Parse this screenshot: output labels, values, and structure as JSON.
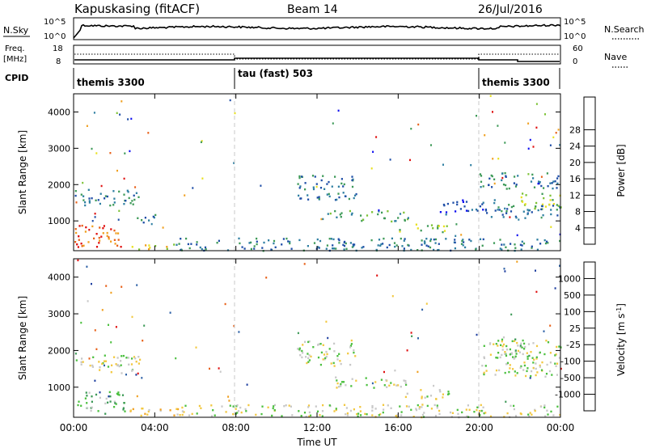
{
  "header": {
    "station": "Kapuskasing (fitACF)",
    "beam": "Beam 14",
    "date": "26/Jul/2016"
  },
  "labels": {
    "nsky": "N.Sky",
    "nsearch": "N.Search",
    "freq_line1": "Freq.",
    "freq_line2": "[MHz]",
    "nave": "Nave",
    "cpid": "CPID",
    "nsky_tick_hi": "10^5",
    "nsky_tick_lo": "10^0",
    "nsearch_tick_hi": "10^5",
    "nsearch_tick_lo": "10^0",
    "freq_tick_hi": "18",
    "freq_tick_lo": "8",
    "nave_tick_hi": "60",
    "nave_tick_lo": "0"
  },
  "cpid": [
    {
      "label": "themis 3300",
      "start_hour": 0
    },
    {
      "label": "tau (fast) 503",
      "start_hour": 8
    },
    {
      "label": "themis 3300",
      "start_hour": 20
    }
  ],
  "colors": {
    "power": [
      "#1010f0",
      "#1f4ea7",
      "#2f7fa2",
      "#3e9a58",
      "#7cc235",
      "#e8e020",
      "#f0a020",
      "#e86018",
      "#e01010"
    ],
    "velocity": [
      "#e01010",
      "#e86018",
      "#f0a020",
      "#f2c840",
      "#c8c8c8",
      "#4cc040",
      "#3e9a58",
      "#2f62a7",
      "#1f3fa0"
    ],
    "frame": "#000000",
    "guide": "#c8c8c8"
  },
  "chart_data": [
    {
      "type": "heatmap",
      "panel": "power",
      "xlabel": "",
      "ylabel": "Slant Range [km]",
      "xlim": [
        0,
        24
      ],
      "ylim": [
        180,
        4500
      ],
      "y_ticks": [
        "1000",
        "2000",
        "3000",
        "4000"
      ],
      "colorbar_label": "Power [dB]",
      "colorbar_ticks": [
        "4",
        "8",
        "12",
        "16",
        "20",
        "24",
        "28"
      ],
      "regions": [
        {
          "t0": 0.0,
          "t1": 2.5,
          "r0": 280,
          "r1": 900,
          "level": 7
        },
        {
          "t0": 2.5,
          "t1": 5.0,
          "r0": 230,
          "r1": 380,
          "level": 5
        },
        {
          "t0": 0.0,
          "t1": 3.3,
          "r0": 1450,
          "r1": 1900,
          "level": 2
        },
        {
          "t0": 3.0,
          "t1": 4.0,
          "r0": 900,
          "r1": 1200,
          "level": 2
        },
        {
          "t0": 5.0,
          "t1": 24.0,
          "r0": 200,
          "r1": 550,
          "level": 2
        },
        {
          "t0": 11.0,
          "t1": 14.0,
          "r0": 1600,
          "r1": 2300,
          "level": 2
        },
        {
          "t0": 12.5,
          "t1": 16.5,
          "r0": 1000,
          "r1": 1300,
          "level": 3
        },
        {
          "t0": 16.0,
          "t1": 18.5,
          "r0": 700,
          "r1": 950,
          "level": 4
        },
        {
          "t0": 18.0,
          "t1": 21.0,
          "r0": 1200,
          "r1": 1600,
          "level": 1
        },
        {
          "t0": 20.0,
          "t1": 24.0,
          "r0": 1900,
          "r1": 2350,
          "level": 2
        },
        {
          "t0": 22.0,
          "t1": 24.0,
          "r0": 1350,
          "r1": 1800,
          "level": 4
        },
        {
          "t0": 20.5,
          "t1": 24.0,
          "r0": 1100,
          "r1": 1500,
          "level": 2
        }
      ]
    },
    {
      "type": "heatmap",
      "panel": "velocity",
      "xlabel": "Time UT",
      "ylabel": "Slant Range [km]",
      "xlim": [
        0,
        24
      ],
      "ylim": [
        180,
        4500
      ],
      "x_ticks": [
        "00:00",
        "04:00",
        "08:00",
        "12:00",
        "16:00",
        "20:00",
        "00:00"
      ],
      "y_ticks": [
        "1000",
        "2000",
        "3000",
        "4000"
      ],
      "colorbar_label": "Velocity [m s^-1]",
      "colorbar_ticks": [
        "1000",
        "500",
        "100",
        "25",
        "-25",
        "-100",
        "-500",
        "-1000"
      ],
      "regions": [
        {
          "t0": 0.0,
          "t1": 2.5,
          "r0": 300,
          "r1": 900,
          "level": 5
        },
        {
          "t0": 2.5,
          "t1": 5.5,
          "r0": 230,
          "r1": 450,
          "level": 3
        },
        {
          "t0": 0.0,
          "t1": 3.3,
          "r0": 1400,
          "r1": 1900,
          "level": 4
        },
        {
          "t0": 5.0,
          "t1": 24.0,
          "r0": 200,
          "r1": 550,
          "level": 4
        },
        {
          "t0": 11.0,
          "t1": 14.0,
          "r0": 1600,
          "r1": 2300,
          "level": 4
        },
        {
          "t0": 12.5,
          "t1": 16.5,
          "r0": 1000,
          "r1": 1300,
          "level": 4
        },
        {
          "t0": 16.0,
          "t1": 18.5,
          "r0": 700,
          "r1": 950,
          "level": 4
        },
        {
          "t0": 20.0,
          "t1": 24.0,
          "r0": 1300,
          "r1": 2300,
          "level": 4
        },
        {
          "t0": 21.0,
          "t1": 22.5,
          "r0": 1800,
          "r1": 2400,
          "level": 5
        }
      ]
    }
  ]
}
